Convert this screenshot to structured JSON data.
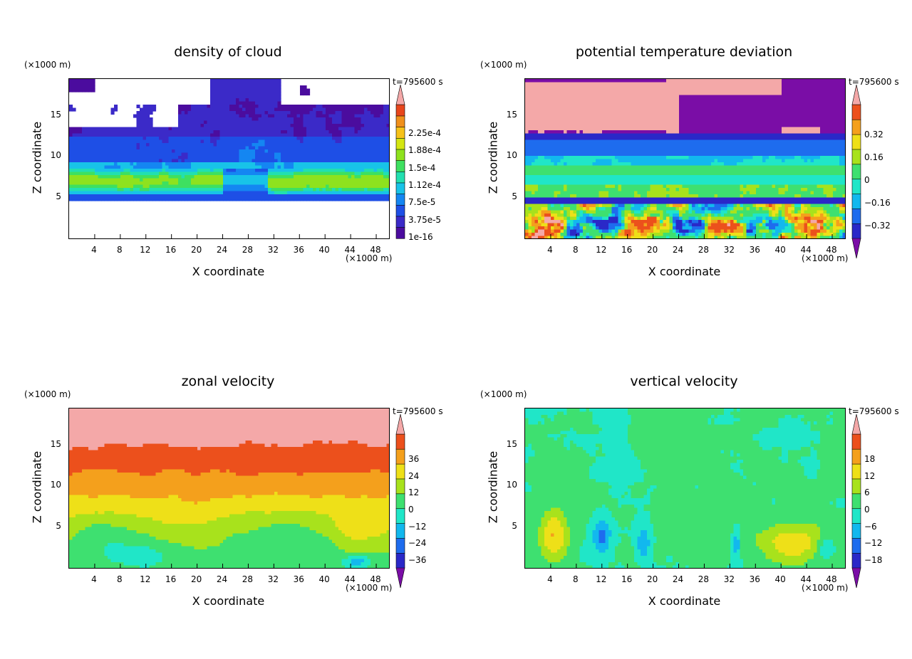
{
  "chart_data": [
    {
      "type": "heatmap",
      "title": "density of cloud",
      "xlabel": "X coordinate",
      "ylabel": "Z coordinate",
      "x_unit": "(×1000 m)",
      "y_unit": "(×1000 m)",
      "time": "t=795600 s",
      "xticks": [
        "4",
        "8",
        "12",
        "16",
        "20",
        "24",
        "28",
        "32",
        "36",
        "40",
        "44",
        "48"
      ],
      "yticks": [
        "5",
        "10",
        "15"
      ],
      "xlim": [
        0,
        50
      ],
      "ylim": [
        0,
        19.5
      ],
      "colorbar": {
        "labels": [
          "1e-16",
          "3.75e-5",
          "7.5e-5",
          "1.12e-4",
          "1.5e-4",
          "1.88e-4",
          "2.25e-4"
        ],
        "colors": [
          "#4B0C9E",
          "#3B2AC8",
          "#1E4FE6",
          "#1486F2",
          "#18C3E8",
          "#22E0B0",
          "#3EE060",
          "#8EE21E",
          "#D4E612",
          "#F6C21A",
          "#F0901C",
          "#E8461C",
          "#F4A8A8"
        ],
        "extend": "max"
      },
      "scheme": "cloud"
    },
    {
      "type": "heatmap",
      "title": "potential temperature deviation",
      "xlabel": "X coordinate",
      "ylabel": "Z coordinate",
      "x_unit": "(×1000 m)",
      "y_unit": "(×1000 m)",
      "time": "t=795600 s",
      "xticks": [
        "4",
        "8",
        "12",
        "16",
        "20",
        "24",
        "28",
        "32",
        "36",
        "40",
        "44",
        "48"
      ],
      "yticks": [
        "5",
        "10",
        "15"
      ],
      "xlim": [
        0,
        50
      ],
      "ylim": [
        0,
        19.5
      ],
      "colorbar": {
        "labels": [
          "−0.32",
          "−0.16",
          "0",
          "0.16",
          "0.32"
        ],
        "colors": [
          "#7A0DA6",
          "#2A28C8",
          "#1E6CEE",
          "#12B8EE",
          "#20E6C8",
          "#3EE070",
          "#A8E21C",
          "#EEE018",
          "#F4A01C",
          "#EC501C",
          "#F4A8A8"
        ],
        "extend": "both"
      },
      "scheme": "theta"
    },
    {
      "type": "heatmap",
      "title": "zonal velocity",
      "xlabel": "X coordinate",
      "ylabel": "Z coordinate",
      "x_unit": "(×1000 m)",
      "y_unit": "(×1000 m)",
      "time": "t=795600 s",
      "xticks": [
        "4",
        "8",
        "12",
        "16",
        "20",
        "24",
        "28",
        "32",
        "36",
        "40",
        "44",
        "48"
      ],
      "yticks": [
        "5",
        "10",
        "15"
      ],
      "xlim": [
        0,
        50
      ],
      "ylim": [
        0,
        19.5
      ],
      "colorbar": {
        "labels": [
          "−36",
          "−24",
          "−12",
          "0",
          "12",
          "24",
          "36"
        ],
        "colors": [
          "#7A0DA6",
          "#2A28C8",
          "#1E6CEE",
          "#12B8EE",
          "#20E6C8",
          "#3EE070",
          "#A8E21C",
          "#EEE018",
          "#F4A01C",
          "#EC501C",
          "#F4A8A8"
        ],
        "extend": "both"
      },
      "scheme": "zonal"
    },
    {
      "type": "heatmap",
      "title": "vertical velocity",
      "xlabel": "X coordinate",
      "ylabel": "Z coordinate",
      "x_unit": "(×1000 m)",
      "y_unit": "(×1000 m)",
      "time": "t=795600 s",
      "xticks": [
        "4",
        "8",
        "12",
        "16",
        "20",
        "24",
        "28",
        "32",
        "36",
        "40",
        "44",
        "48"
      ],
      "yticks": [
        "5",
        "10",
        "15"
      ],
      "xlim": [
        0,
        50
      ],
      "ylim": [
        0,
        19.5
      ],
      "colorbar": {
        "labels": [
          "−18",
          "−12",
          "−6",
          "0",
          "6",
          "12",
          "18"
        ],
        "colors": [
          "#7A0DA6",
          "#2A28C8",
          "#1E6CEE",
          "#12B8EE",
          "#20E6C8",
          "#3EE070",
          "#A8E21C",
          "#EEE018",
          "#F4A01C",
          "#EC501C",
          "#F4A8A8"
        ],
        "extend": "both"
      },
      "scheme": "vertical"
    }
  ]
}
